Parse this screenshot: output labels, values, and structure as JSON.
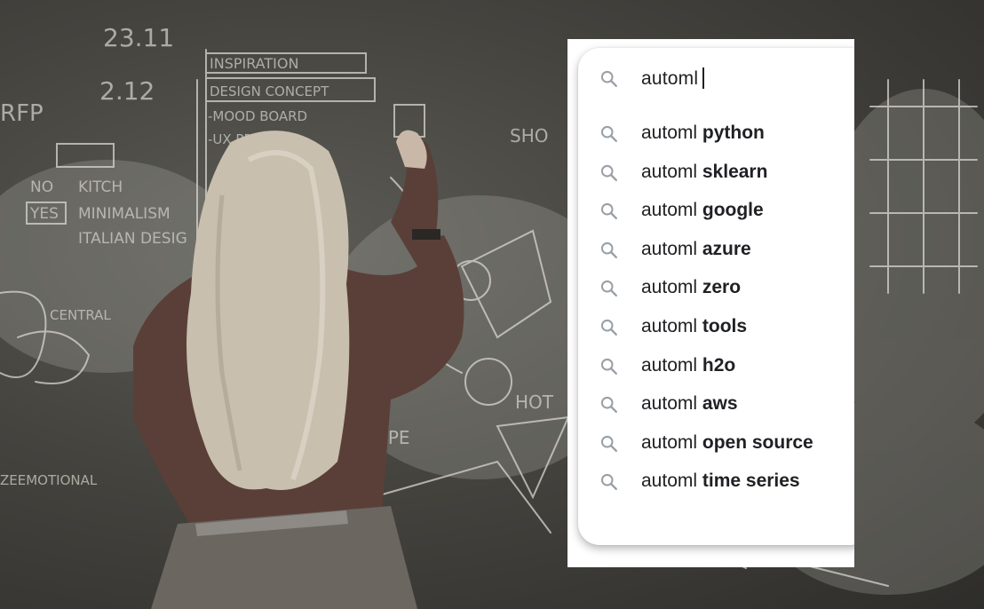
{
  "search": {
    "query": "automl",
    "icon": "search-icon"
  },
  "suggestions": [
    {
      "prefix": "automl",
      "completion": "python"
    },
    {
      "prefix": "automl",
      "completion": "sklearn"
    },
    {
      "prefix": "automl",
      "completion": "google"
    },
    {
      "prefix": "automl",
      "completion": "azure"
    },
    {
      "prefix": "automl",
      "completion": "zero"
    },
    {
      "prefix": "automl",
      "completion": "tools"
    },
    {
      "prefix": "automl",
      "completion": "h2o"
    },
    {
      "prefix": "automl",
      "completion": "aws"
    },
    {
      "prefix": "automl",
      "completion": "open source"
    },
    {
      "prefix": "automl",
      "completion": "time series"
    }
  ],
  "background": {
    "description_icon": "chalkboard-photo",
    "chalk_text": [
      "INSPIRATION",
      "DESIGN CONCEPT",
      "-MOOD BOARD",
      "-UX PROBLEM",
      "NO",
      "YES",
      "KITCH",
      "MINIMALISM",
      "ITALIAN DESIG",
      "23.11",
      "2.12",
      "RFP",
      "SLOPE",
      "CENTRAL",
      "ZEEMOTIONAL",
      "SHO",
      "HOT"
    ]
  },
  "colors": {
    "panel_bg": "#ffffff",
    "text": "#202124",
    "icon": "#9aa0a6"
  }
}
